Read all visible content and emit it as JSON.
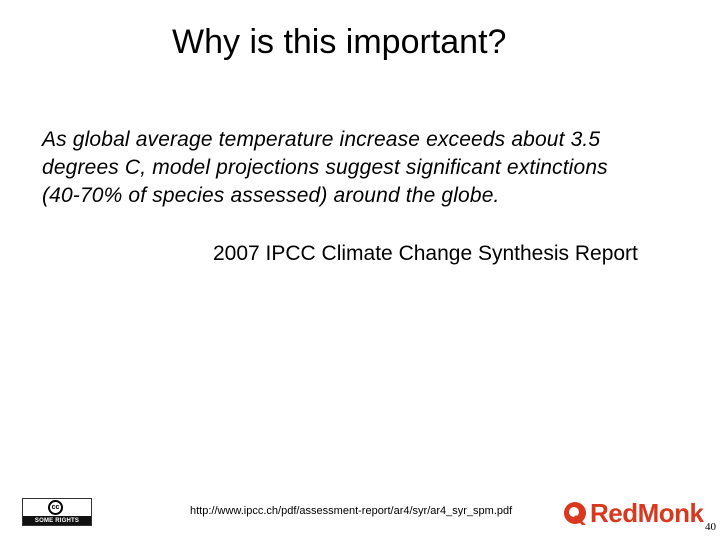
{
  "slide": {
    "title": "Why is this important?",
    "quote_lines": [
      "As global average temperature increase exceeds about 3.5",
      "degrees C, model projections suggest significant extinctions",
      "(40-70% of species assessed) around the globe."
    ],
    "source": "2007 IPCC Climate Change Synthesis Report",
    "url": "http://www.ipcc.ch/pdf/assessment-report/ar4/syr/ar4_syr_spm.pdf",
    "page_number": "40"
  },
  "footer": {
    "cc_badge_symbol": "cc",
    "cc_badge_text": "SOME RIGHTS RESERVED",
    "logo_text": "RedMonk",
    "logo_color": "#d9381e"
  }
}
